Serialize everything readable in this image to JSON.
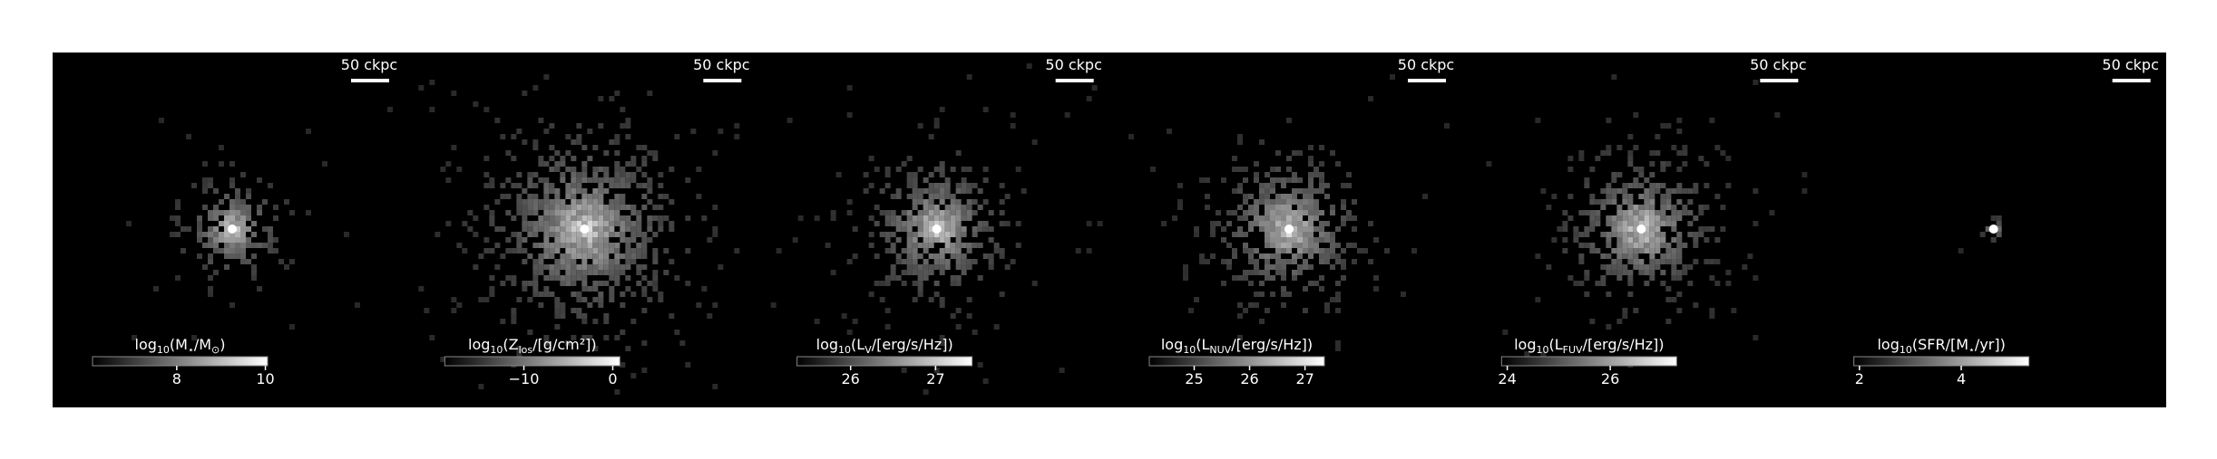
{
  "panels": [
    {
      "scale_bar": "50 ckpc",
      "colorbar": {
        "label": [
          {
            "text": "log"
          },
          {
            "text": "10",
            "sub": true
          },
          {
            "text": "(M"
          },
          {
            "text": "⋆",
            "sub": true
          },
          {
            "text": "/M"
          },
          {
            "text": "⊙",
            "sub": true
          },
          {
            "text": ")"
          }
        ],
        "clim": [
          6.1,
          10.05
        ],
        "ticks": [
          8,
          10
        ]
      }
    },
    {
      "scale_bar": "50 ckpc",
      "colorbar": {
        "label": [
          {
            "text": "log"
          },
          {
            "text": "10",
            "sub": true
          },
          {
            "text": "(Z"
          },
          {
            "text": "los",
            "sub": true
          },
          {
            "text": "/[g/cm²])"
          }
        ],
        "clim": [
          -18.9,
          0.8
        ],
        "ticks": [
          {
            "value": -10,
            "label": "−10"
          },
          0
        ]
      }
    },
    {
      "scale_bar": "50 ckpc",
      "colorbar": {
        "label": [
          {
            "text": "log"
          },
          {
            "text": "10",
            "sub": true
          },
          {
            "text": "(L"
          },
          {
            "text": "V",
            "sub": true
          },
          {
            "text": "/[erg/s/Hz])"
          }
        ],
        "clim": [
          25.37,
          27.43
        ],
        "ticks": [
          26,
          27
        ]
      }
    },
    {
      "scale_bar": "50 ckpc",
      "colorbar": {
        "label": [
          {
            "text": "log"
          },
          {
            "text": "10",
            "sub": true
          },
          {
            "text": "(L"
          },
          {
            "text": "NUV",
            "sub": true
          },
          {
            "text": "/[erg/s/Hz])"
          }
        ],
        "clim": [
          24.19,
          27.35
        ],
        "ticks": [
          25,
          26,
          27
        ]
      }
    },
    {
      "scale_bar": "50 ckpc",
      "colorbar": {
        "label": [
          {
            "text": "log"
          },
          {
            "text": "10",
            "sub": true
          },
          {
            "text": "(L"
          },
          {
            "text": "FUV",
            "sub": true
          },
          {
            "text": "/[erg/s/Hz])"
          }
        ],
        "clim": [
          23.89,
          27.29
        ],
        "ticks": [
          24,
          26
        ]
      }
    },
    {
      "scale_bar": "50 ckpc",
      "colorbar": {
        "label": [
          {
            "text": "log"
          },
          {
            "text": "10",
            "sub": true
          },
          {
            "text": "(SFR/[M"
          },
          {
            "text": "⋆",
            "sub": true
          },
          {
            "text": "/yr])"
          }
        ],
        "clim": [
          1.89,
          5.33
        ],
        "ticks": [
          2,
          4
        ]
      }
    }
  ]
}
